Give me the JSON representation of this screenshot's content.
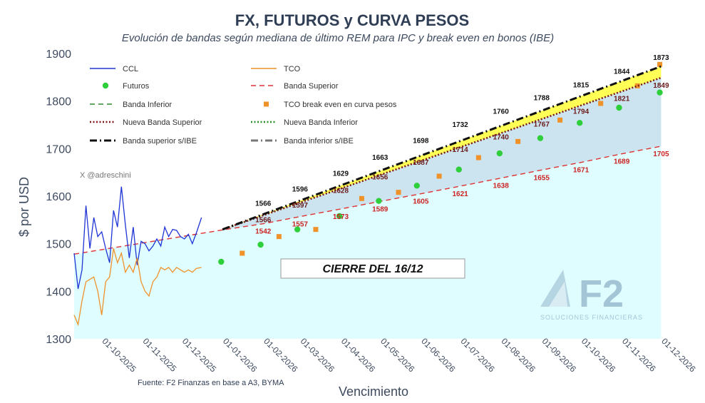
{
  "chart_data": {
    "type": "line",
    "title": "FX, FUTUROS y CURVA PESOS",
    "subtitle": "Evolución de bandas según mediana de último REM para IPC y break even en bonos (IBE)",
    "xlabel": "Vencimiento",
    "ylabel": "$ por USD",
    "ylim": [
      1300,
      1900
    ],
    "yticks": [
      1300,
      1400,
      1500,
      1600,
      1700,
      1800,
      1900
    ],
    "xlim": [
      "2025-09-10",
      "2026-12-10"
    ],
    "xticks": [
      "2025-10-01",
      "2025-11-01",
      "2025-12-01",
      "2026-01-01",
      "2026-02-01",
      "2026-03-01",
      "2026-04-01",
      "2026-05-01",
      "2026-06-01",
      "2026-07-01",
      "2026-08-01",
      "2026-09-01",
      "2026-10-01",
      "2026-11-01",
      "2026-12-01"
    ],
    "xtick_labels": [
      "01-10-2025",
      "01-11-2025",
      "01-12-2025",
      "01-01-2026",
      "01-02-2026",
      "01-03-2026",
      "01-04-2026",
      "01-05-2026",
      "01-06-2026",
      "01-07-2026",
      "01-08-2026",
      "01-09-2026",
      "01-10-2026",
      "01-11-2026",
      "01-12-2026"
    ],
    "grid": false,
    "legend_position": "top-left",
    "annotations": {
      "handle": "X @adreschini",
      "box": "CIERRE DEL 16/12",
      "source": "Fuente: F2 Finanzas en base a A3, BYMA",
      "logo_text": "F2",
      "logo_subtext": "SOLUCIONES FINANCIERAS"
    },
    "series": [
      {
        "name": "CCL",
        "style": "line",
        "color": "#1f35d6",
        "x": [
          "2025-09-10",
          "2025-09-13",
          "2025-09-16",
          "2025-09-19",
          "2025-09-22",
          "2025-09-25",
          "2025-09-28",
          "2025-10-01",
          "2025-10-04",
          "2025-10-07",
          "2025-10-10",
          "2025-10-13",
          "2025-10-16",
          "2025-10-19",
          "2025-10-22",
          "2025-10-25",
          "2025-10-28",
          "2025-10-31",
          "2025-11-03",
          "2025-11-06",
          "2025-11-09",
          "2025-11-12",
          "2025-11-15",
          "2025-11-18",
          "2025-11-21",
          "2025-11-24",
          "2025-11-27",
          "2025-11-30",
          "2025-12-03",
          "2025-12-06",
          "2025-12-09",
          "2025-12-12",
          "2025-12-16"
        ],
        "y": [
          1480,
          1405,
          1445,
          1580,
          1490,
          1555,
          1515,
          1525,
          1490,
          1460,
          1570,
          1535,
          1620,
          1540,
          1470,
          1535,
          1455,
          1505,
          1500,
          1485,
          1495,
          1510,
          1495,
          1535,
          1515,
          1530,
          1528,
          1515,
          1510,
          1520,
          1500,
          1522,
          1555
        ]
      },
      {
        "name": "TCO",
        "style": "line",
        "color": "#f0922a",
        "x": [
          "2025-09-10",
          "2025-09-13",
          "2025-09-16",
          "2025-09-19",
          "2025-09-22",
          "2025-09-25",
          "2025-09-28",
          "2025-10-01",
          "2025-10-04",
          "2025-10-07",
          "2025-10-10",
          "2025-10-13",
          "2025-10-16",
          "2025-10-19",
          "2025-10-22",
          "2025-10-25",
          "2025-10-28",
          "2025-10-31",
          "2025-11-03",
          "2025-11-06",
          "2025-11-09",
          "2025-11-12",
          "2025-11-15",
          "2025-11-18",
          "2025-11-21",
          "2025-11-24",
          "2025-11-27",
          "2025-11-30",
          "2025-12-03",
          "2025-12-06",
          "2025-12-09",
          "2025-12-12",
          "2025-12-16"
        ],
        "y": [
          1350,
          1330,
          1380,
          1420,
          1425,
          1430,
          1400,
          1350,
          1420,
          1430,
          1490,
          1460,
          1480,
          1440,
          1455,
          1440,
          1470,
          1420,
          1400,
          1390,
          1420,
          1430,
          1450,
          1445,
          1450,
          1440,
          1450,
          1445,
          1440,
          1445,
          1440,
          1448,
          1450
        ]
      },
      {
        "name": "Futuros",
        "style": "circle",
        "color": "#2fcf3c",
        "x": [
          "2025-12-31",
          "2026-01-30",
          "2026-02-27",
          "2026-03-31",
          "2026-04-30",
          "2026-05-29",
          "2026-06-30",
          "2026-07-31",
          "2026-08-31",
          "2026-09-30",
          "2026-10-30",
          "2026-11-30"
        ],
        "y": [
          1462,
          1498,
          1530,
          1558,
          1590,
          1622,
          1656,
          1690,
          1722,
          1754,
          1786,
          1818
        ]
      },
      {
        "name": "Banda Superior",
        "style": "dash",
        "color": "#e03131",
        "x": [],
        "y": []
      },
      {
        "name": "Banda Inferior",
        "style": "dash",
        "color": "#2e8b2e",
        "x": [],
        "y": []
      },
      {
        "name": "TCO break even en curva pesos",
        "style": "square",
        "color": "#f0922a",
        "x": [
          "2026-01-16",
          "2026-02-13",
          "2026-03-13",
          "2026-04-17",
          "2026-05-15",
          "2026-06-15",
          "2026-07-15",
          "2026-08-14",
          "2026-09-15",
          "2026-10-16",
          "2026-11-13",
          "2026-11-30"
        ],
        "y": [
          1480,
          1515,
          1530,
          1595,
          1608,
          1642,
          1681,
          1715,
          1760,
          1795,
          1832,
          1877
        ]
      },
      {
        "name": "Nueva Banda Superior",
        "style": "dotted",
        "color": "#7a1a1a",
        "x": [
          "2026-01-01",
          "2026-12-01"
        ],
        "y": [
          1530,
          1849
        ]
      },
      {
        "name": "Nueva Banda Inferior",
        "style": "dotted",
        "color": "#2e8b2e",
        "x": [],
        "y": []
      },
      {
        "name": "Banda superior s/IBE",
        "style": "dashdot",
        "color": "#111111",
        "x": [
          "2026-01-01",
          "2026-12-01"
        ],
        "y": [
          1530,
          1873
        ]
      },
      {
        "name": "Banda inferior s/IBE",
        "style": "dashdot",
        "color": "#777777",
        "x": [],
        "y": []
      }
    ],
    "band_upper_line": {
      "color": "#e03131",
      "x": [
        "2025-09-10",
        "2026-01-01",
        "2026-02-01",
        "2026-03-01",
        "2026-04-01",
        "2026-05-01",
        "2026-06-01",
        "2026-07-01",
        "2026-08-01",
        "2026-09-01",
        "2026-10-01",
        "2026-11-01",
        "2026-12-01"
      ],
      "y": [
        1478,
        1529,
        1542,
        1557,
        1573,
        1589,
        1605,
        1621,
        1638,
        1655,
        1671,
        1689,
        1705
      ]
    },
    "labels_upper_ibe": {
      "x": [
        "2026-02-01",
        "2026-03-01",
        "2026-04-01",
        "2026-05-01",
        "2026-06-01",
        "2026-07-01",
        "2026-08-01",
        "2026-09-01",
        "2026-10-01",
        "2026-11-01",
        "2026-12-01"
      ],
      "values": [
        1566,
        1596,
        1629,
        1663,
        1698,
        1732,
        1760,
        1788,
        1815,
        1844,
        1873
      ]
    },
    "labels_new_upper": {
      "x": [
        "2026-02-01",
        "2026-03-01",
        "2026-04-01",
        "2026-05-01",
        "2026-06-01",
        "2026-07-01",
        "2026-08-01",
        "2026-09-01",
        "2026-10-01",
        "2026-11-01",
        "2026-12-01"
      ],
      "values": [
        1566,
        1597,
        1628,
        1656,
        1687,
        1714,
        1740,
        1767,
        1794,
        1821,
        1849
      ]
    },
    "labels_band_upper": {
      "x": [
        "2026-02-01",
        "2026-03-01",
        "2026-04-01",
        "2026-05-01",
        "2026-06-01",
        "2026-07-01",
        "2026-08-01",
        "2026-09-01",
        "2026-10-01",
        "2026-11-01",
        "2026-12-01"
      ],
      "values": [
        1542,
        1557,
        1573,
        1589,
        1605,
        1621,
        1638,
        1655,
        1671,
        1689,
        1705
      ]
    },
    "colors": {
      "title": "#2f3e55",
      "fill_lower": "#dffdff",
      "fill_mid": "#cce4ef",
      "fill_yellow": "#ffff55",
      "label_red": "#cc2222",
      "label_dark": "#111111",
      "label_brown": "#6a1a1a"
    }
  }
}
